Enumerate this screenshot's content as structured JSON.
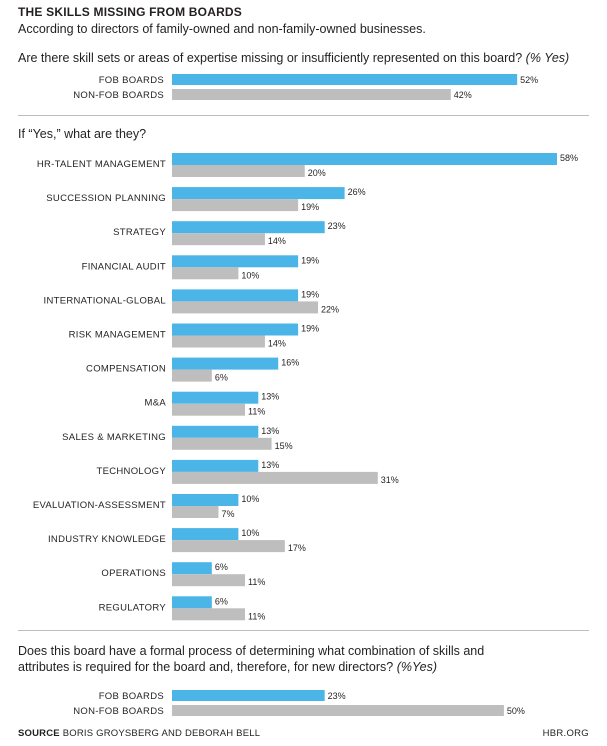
{
  "header": {
    "title": "THE SKILLS MISSING FROM BOARDS",
    "subtitle": "According to directors of family-owned and non-family-owned businesses."
  },
  "colors": {
    "fob": "#4ab5e6",
    "non_fob": "#bebebe",
    "rule": "#bdbdbd"
  },
  "chart_data": [
    {
      "type": "bar",
      "orientation": "horizontal",
      "title": "Are there skill sets or areas of expertise missing or insufficiently represented on this board?",
      "note": "(% Yes)",
      "categories": [
        "FOB BOARDS",
        "NON-FOB BOARDS"
      ],
      "series": [
        {
          "name": "value",
          "values": [
            52,
            42
          ]
        }
      ],
      "value_labels": [
        "52%",
        "42%"
      ],
      "xlim": [
        0,
        60
      ]
    },
    {
      "type": "bar",
      "orientation": "horizontal",
      "title": "If “Yes,” what are they?",
      "categories": [
        "HR-TALENT MANAGEMENT",
        "SUCCESSION PLANNING",
        "STRATEGY",
        "FINANCIAL AUDIT",
        "INTERNATIONAL-GLOBAL",
        "RISK MANAGEMENT",
        "COMPENSATION",
        "M&A",
        "SALES & MARKETING",
        "TECHNOLOGY",
        "EVALUATION-ASSESSMENT",
        "INDUSTRY KNOWLEDGE",
        "OPERATIONS",
        "REGULATORY"
      ],
      "series": [
        {
          "name": "FOB",
          "values": [
            58,
            26,
            23,
            19,
            19,
            19,
            16,
            13,
            13,
            13,
            10,
            10,
            6,
            6
          ],
          "labels": [
            "58%",
            "26%",
            "23%",
            "19%",
            "19%",
            "19%",
            "16%",
            "13%",
            "13%",
            "13%",
            "10%",
            "10%",
            "6%",
            "6%"
          ]
        },
        {
          "name": "NON-FOB",
          "values": [
            20,
            19,
            14,
            10,
            22,
            14,
            6,
            11,
            15,
            31,
            7,
            17,
            11,
            11
          ],
          "labels": [
            "20%",
            "19%",
            "14%",
            "10%",
            "22%",
            "14%",
            "6%",
            "11%",
            "15%",
            "31%",
            "7%",
            "17%",
            "11%",
            "11%"
          ]
        }
      ],
      "xlim": [
        0,
        60
      ]
    },
    {
      "type": "bar",
      "orientation": "horizontal",
      "title_line1": "Does this board have a formal process of determining what combination of skills and",
      "title_line2": "attributes is required for the board and, therefore, for new directors?",
      "note": "(%Yes)",
      "categories": [
        "FOB BOARDS",
        "NON-FOB BOARDS"
      ],
      "series": [
        {
          "name": "value",
          "values": [
            23,
            50
          ]
        }
      ],
      "value_labels": [
        "23%",
        "50%"
      ],
      "xlim": [
        0,
        60
      ]
    }
  ],
  "footer": {
    "source_label": "SOURCE",
    "source_text": "BORIS GROYSBERG AND DEBORAH BELL",
    "site": "HBR.ORG"
  }
}
